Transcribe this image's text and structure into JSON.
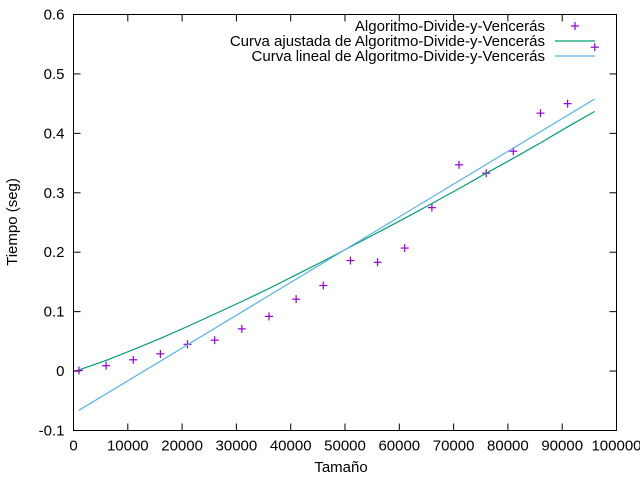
{
  "chart_data": {
    "type": "scatter",
    "xlabel": "Tamaño",
    "ylabel": "Tiempo (seg)",
    "xlim": [
      0,
      100000
    ],
    "ylim": [
      -0.1,
      0.6
    ],
    "x_ticks": [
      0,
      10000,
      20000,
      30000,
      40000,
      50000,
      60000,
      70000,
      80000,
      90000,
      100000
    ],
    "y_ticks": [
      -0.1,
      0,
      0.1,
      0.2,
      0.3,
      0.4,
      0.5,
      0.6
    ],
    "x_tick_labels": [
      "0",
      "10000",
      "20000",
      "30000",
      "40000",
      "50000",
      "60000",
      "70000",
      "80000",
      "90000",
      "100000"
    ],
    "y_tick_labels": [
      "-0.1",
      "0",
      "0.1",
      "0.2",
      "0.3",
      "0.4",
      "0.5",
      "0.6"
    ],
    "grid": false,
    "legend_position": "top-right",
    "series": [
      {
        "name": "Algoritmo-Divide-y-Vencerás",
        "kind": "points",
        "marker": "+",
        "color": "#9400d3",
        "points": [
          [
            1000,
            0.001
          ],
          [
            6000,
            0.009
          ],
          [
            11000,
            0.019
          ],
          [
            16000,
            0.029
          ],
          [
            21000,
            0.045
          ],
          [
            26000,
            0.052
          ],
          [
            31000,
            0.071
          ],
          [
            36000,
            0.092
          ],
          [
            41000,
            0.121
          ],
          [
            46000,
            0.144
          ],
          [
            51000,
            0.186
          ],
          [
            56000,
            0.183
          ],
          [
            61000,
            0.207
          ],
          [
            66000,
            0.275
          ],
          [
            71000,
            0.347
          ],
          [
            76000,
            0.333
          ],
          [
            81000,
            0.37
          ],
          [
            86000,
            0.434
          ],
          [
            91000,
            0.45
          ],
          [
            96000,
            0.545
          ]
        ]
      },
      {
        "name": "Curva ajustada de Algoritmo-Divide-y-Vencerás",
        "kind": "line",
        "color": "#009e73",
        "points": [
          [
            1000,
            0.002
          ],
          [
            6000,
            0.018
          ],
          [
            11000,
            0.036
          ],
          [
            16000,
            0.055
          ],
          [
            21000,
            0.075
          ],
          [
            26000,
            0.096
          ],
          [
            31000,
            0.117
          ],
          [
            36000,
            0.139
          ],
          [
            41000,
            0.162
          ],
          [
            46000,
            0.185
          ],
          [
            51000,
            0.209
          ],
          [
            56000,
            0.233
          ],
          [
            61000,
            0.257
          ],
          [
            66000,
            0.282
          ],
          [
            71000,
            0.307
          ],
          [
            76000,
            0.333
          ],
          [
            81000,
            0.358
          ],
          [
            86000,
            0.384
          ],
          [
            91000,
            0.411
          ],
          [
            96000,
            0.437
          ]
        ]
      },
      {
        "name": "Curva lineal de Algoritmo-Divide-y-Vencerás",
        "kind": "line",
        "color": "#56b4e9",
        "points": [
          [
            1000,
            -0.066
          ],
          [
            96000,
            0.458
          ]
        ]
      }
    ]
  }
}
